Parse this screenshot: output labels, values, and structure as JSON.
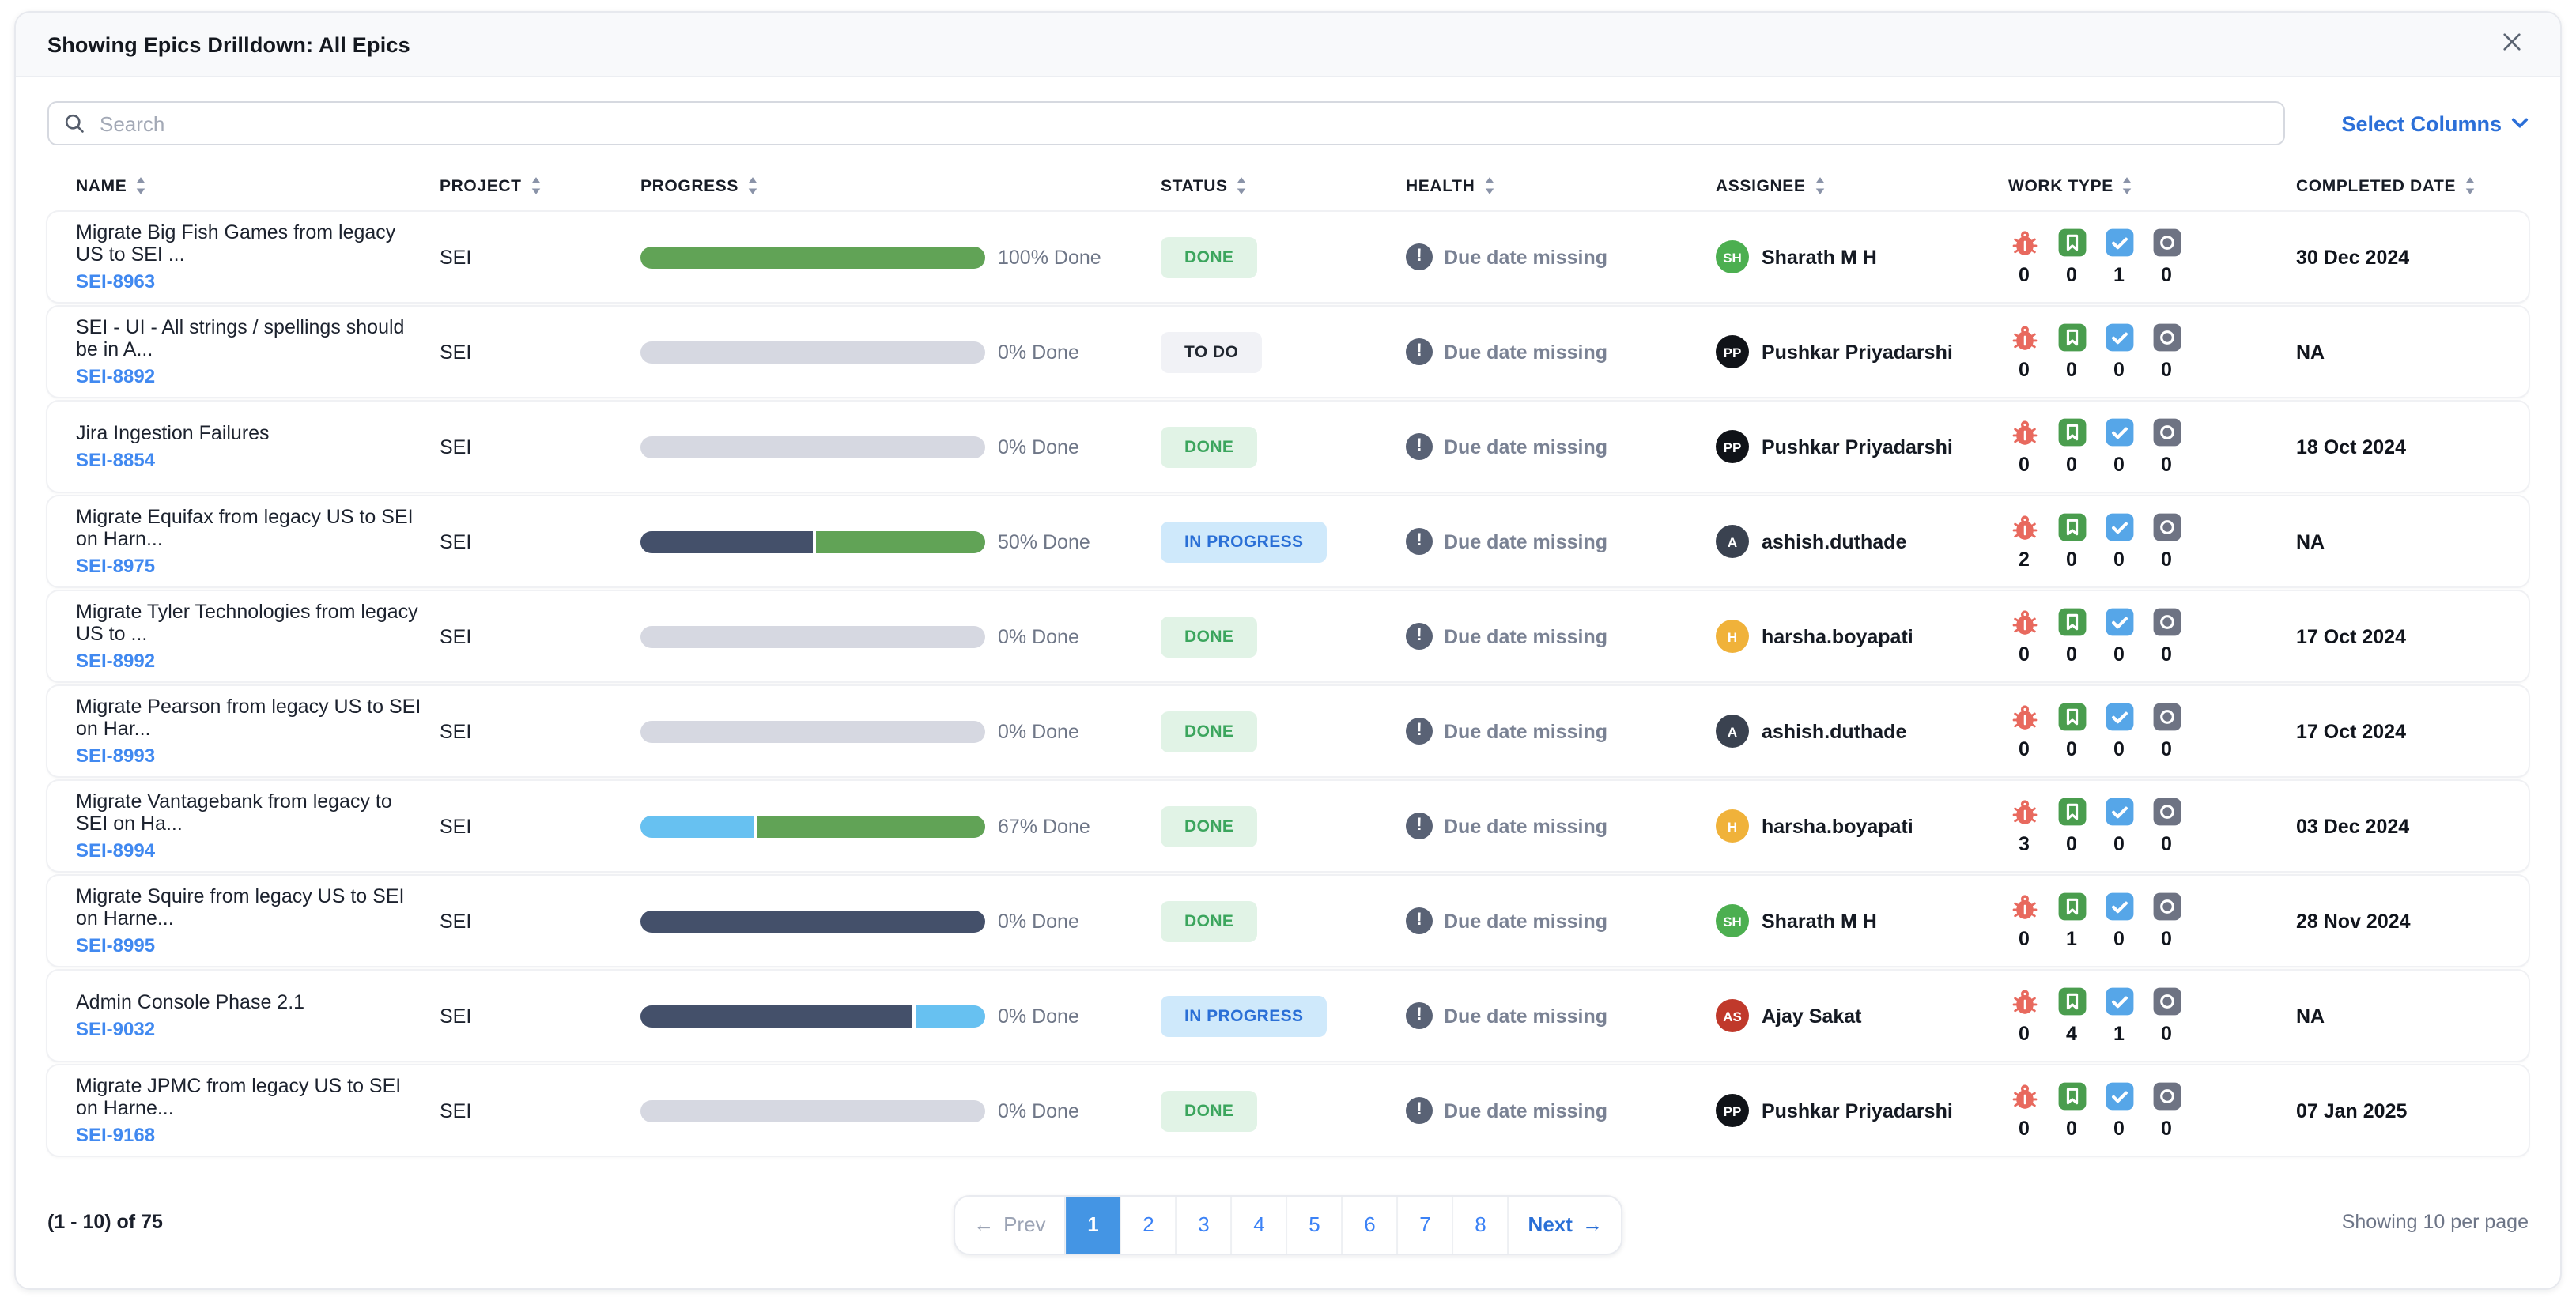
{
  "modal": {
    "title": "Showing Epics Drilldown: All Epics",
    "close_icon": "close-x"
  },
  "toolbar": {
    "search_placeholder": "Search",
    "search_icon": "magnifier",
    "select_columns_label": "Select Columns",
    "select_columns_icon": "chevron-down"
  },
  "table": {
    "columns": [
      {
        "key": "name",
        "label": "NAME"
      },
      {
        "key": "project",
        "label": "PROJECT"
      },
      {
        "key": "progress",
        "label": "PROGRESS"
      },
      {
        "key": "status",
        "label": "STATUS"
      },
      {
        "key": "health",
        "label": "HEALTH"
      },
      {
        "key": "assignee",
        "label": "ASSIGNEE"
      },
      {
        "key": "worktype",
        "label": "WORK TYPE"
      },
      {
        "key": "completed",
        "label": "COMPLETED DATE"
      }
    ],
    "work_type_icons": [
      {
        "name": "bug-icon",
        "color": "#e8695e"
      },
      {
        "name": "story-icon",
        "color": "#4a9d4e"
      },
      {
        "name": "task-icon",
        "color": "#56a6e8"
      },
      {
        "name": "other-icon",
        "color": "#6e7383"
      }
    ],
    "health_icon": "exclamation-circle",
    "rows": [
      {
        "name": "Migrate Big Fish Games from legacy US to SEI ...",
        "key": "SEI-8963",
        "project": "SEI",
        "progress": {
          "label": "100% Done",
          "segments": [
            {
              "color": "green",
              "pct": 100
            }
          ]
        },
        "status": {
          "label": "DONE",
          "type": "done"
        },
        "health": "Due date missing",
        "assignee": {
          "name": "Sharath M H",
          "initials": "SH",
          "color": "#4caf50"
        },
        "work_type_counts": [
          0,
          0,
          1,
          0
        ],
        "completed_date": "30 Dec 2024"
      },
      {
        "name": "SEI - UI - All strings / spellings should be in A...",
        "key": "SEI-8892",
        "project": "SEI",
        "progress": {
          "label": "0% Done",
          "segments": []
        },
        "status": {
          "label": "TO DO",
          "type": "todo"
        },
        "health": "Due date missing",
        "assignee": {
          "name": "Pushkar Priyadarshi",
          "initials": "PP",
          "color": "#101318"
        },
        "work_type_counts": [
          0,
          0,
          0,
          0
        ],
        "completed_date": "NA"
      },
      {
        "name": "Jira Ingestion Failures",
        "key": "SEI-8854",
        "project": "SEI",
        "progress": {
          "label": "0% Done",
          "segments": []
        },
        "status": {
          "label": "DONE",
          "type": "done"
        },
        "health": "Due date missing",
        "assignee": {
          "name": "Pushkar Priyadarshi",
          "initials": "PP",
          "color": "#101318"
        },
        "work_type_counts": [
          0,
          0,
          0,
          0
        ],
        "completed_date": "18 Oct 2024"
      },
      {
        "name": "Migrate Equifax from legacy US to SEI on Harn...",
        "key": "SEI-8975",
        "project": "SEI",
        "progress": {
          "label": "50% Done",
          "segments": [
            {
              "color": "navy",
              "pct": 50
            },
            {
              "color": "green",
              "pct": 50
            }
          ]
        },
        "status": {
          "label": "IN PROGRESS",
          "type": "inprogress"
        },
        "health": "Due date missing",
        "assignee": {
          "name": "ashish.duthade",
          "initials": "A",
          "color": "#3a4250"
        },
        "work_type_counts": [
          2,
          0,
          0,
          0
        ],
        "completed_date": "NA"
      },
      {
        "name": "Migrate Tyler Technologies from legacy US to ...",
        "key": "SEI-8992",
        "project": "SEI",
        "progress": {
          "label": "0% Done",
          "segments": []
        },
        "status": {
          "label": "DONE",
          "type": "done"
        },
        "health": "Due date missing",
        "assignee": {
          "name": "harsha.boyapati",
          "initials": "H",
          "color": "#f0b23a"
        },
        "work_type_counts": [
          0,
          0,
          0,
          0
        ],
        "completed_date": "17 Oct 2024"
      },
      {
        "name": "Migrate Pearson from legacy US to SEI on Har...",
        "key": "SEI-8993",
        "project": "SEI",
        "progress": {
          "label": "0% Done",
          "segments": []
        },
        "status": {
          "label": "DONE",
          "type": "done"
        },
        "health": "Due date missing",
        "assignee": {
          "name": "ashish.duthade",
          "initials": "A",
          "color": "#3a4250"
        },
        "work_type_counts": [
          0,
          0,
          0,
          0
        ],
        "completed_date": "17 Oct 2024"
      },
      {
        "name": "Migrate Vantagebank from legacy to SEI on Ha...",
        "key": "SEI-8994",
        "project": "SEI",
        "progress": {
          "label": "67% Done",
          "segments": [
            {
              "color": "lightblue",
              "pct": 33
            },
            {
              "color": "green",
              "pct": 67
            }
          ]
        },
        "status": {
          "label": "DONE",
          "type": "done"
        },
        "health": "Due date missing",
        "assignee": {
          "name": "harsha.boyapati",
          "initials": "H",
          "color": "#f0b23a"
        },
        "work_type_counts": [
          3,
          0,
          0,
          0
        ],
        "completed_date": "03 Dec 2024"
      },
      {
        "name": "Migrate Squire from legacy US to SEI on Harne...",
        "key": "SEI-8995",
        "project": "SEI",
        "progress": {
          "label": "0% Done",
          "segments": [
            {
              "color": "navy",
              "pct": 100
            }
          ]
        },
        "status": {
          "label": "DONE",
          "type": "done"
        },
        "health": "Due date missing",
        "assignee": {
          "name": "Sharath M H",
          "initials": "SH",
          "color": "#4caf50"
        },
        "work_type_counts": [
          0,
          1,
          0,
          0
        ],
        "completed_date": "28 Nov 2024"
      },
      {
        "name": "Admin Console Phase 2.1",
        "key": "SEI-9032",
        "project": "SEI",
        "progress": {
          "label": "0% Done",
          "segments": [
            {
              "color": "navy",
              "pct": 79
            },
            {
              "color": "lightblue",
              "pct": 21
            }
          ]
        },
        "status": {
          "label": "IN PROGRESS",
          "type": "inprogress"
        },
        "health": "Due date missing",
        "assignee": {
          "name": "Ajay Sakat",
          "initials": "AS",
          "color": "#c0392b"
        },
        "work_type_counts": [
          0,
          4,
          1,
          0
        ],
        "completed_date": "NA"
      },
      {
        "name": "Migrate JPMC from legacy US to SEI on Harne...",
        "key": "SEI-9168",
        "project": "SEI",
        "progress": {
          "label": "0% Done",
          "segments": []
        },
        "status": {
          "label": "DONE",
          "type": "done"
        },
        "health": "Due date missing",
        "assignee": {
          "name": "Pushkar Priyadarshi",
          "initials": "PP",
          "color": "#101318"
        },
        "work_type_counts": [
          0,
          0,
          0,
          0
        ],
        "completed_date": "07 Jan 2025"
      }
    ]
  },
  "footer": {
    "range_label": "(1 - 10) of 75",
    "prev_label": "Prev",
    "next_label": "Next",
    "pages": [
      "1",
      "2",
      "3",
      "4",
      "5",
      "6",
      "7",
      "8"
    ],
    "active_page": "1",
    "per_page_label": "Showing 10 per page"
  },
  "colors": {
    "progress": {
      "green": "#61a356",
      "navy": "#44506a",
      "lightblue": "#67c1f1",
      "track": "#d6d8e1"
    },
    "link": "#4189f0",
    "accent_blue": "#2b6fd8",
    "pagination_active": "#4495e4",
    "status_done_bg": "#e1f3e6",
    "status_done_text": "#3ba55d",
    "status_todo_bg": "#f1f2f6",
    "status_todo_text": "#20262f",
    "status_inprogress_bg": "#cfe9fb",
    "status_inprogress_text": "#2a6fd6",
    "health_icon_bg": "#596275"
  }
}
